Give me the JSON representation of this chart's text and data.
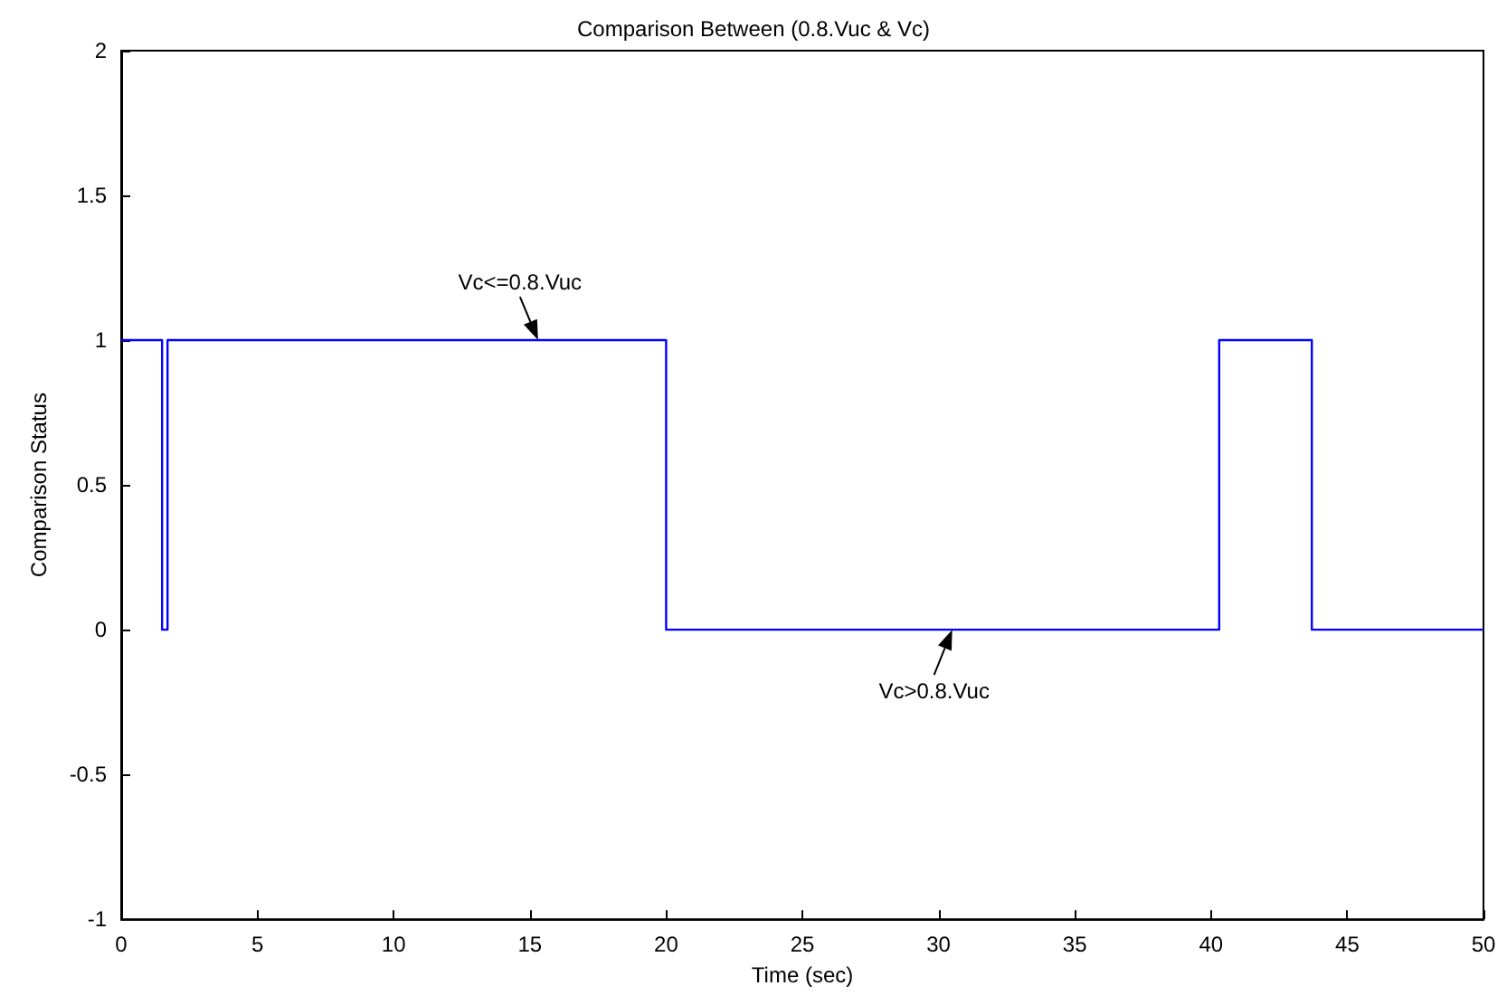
{
  "chart_data": {
    "type": "step",
    "title": "Comparison Between (0.8.Vuc & Vc)",
    "xlabel": "Time (sec)",
    "ylabel": "Comparison Status",
    "x": [
      0,
      1.5,
      1.7,
      20,
      40.3,
      43.7,
      50
    ],
    "series": [
      {
        "color": "#0000ff",
        "values": [
          1,
          0,
          1,
          0,
          1,
          0,
          0
        ]
      }
    ],
    "xlim": [
      0,
      50
    ],
    "xticks": [
      0,
      5,
      10,
      15,
      20,
      25,
      30,
      35,
      40,
      45,
      50
    ],
    "ylim": [
      -1,
      2
    ],
    "yticks": [
      -1,
      -0.5,
      0,
      0.5,
      1,
      1.5,
      2
    ],
    "grid": false,
    "marker": "none",
    "line_style": "solid",
    "annotations": [
      {
        "text": "Vc<=0.8.Vuc",
        "x": 15.3,
        "y": 1
      },
      {
        "text": "Vc>0.8.Vuc",
        "x": 30.5,
        "y": 0
      }
    ]
  }
}
